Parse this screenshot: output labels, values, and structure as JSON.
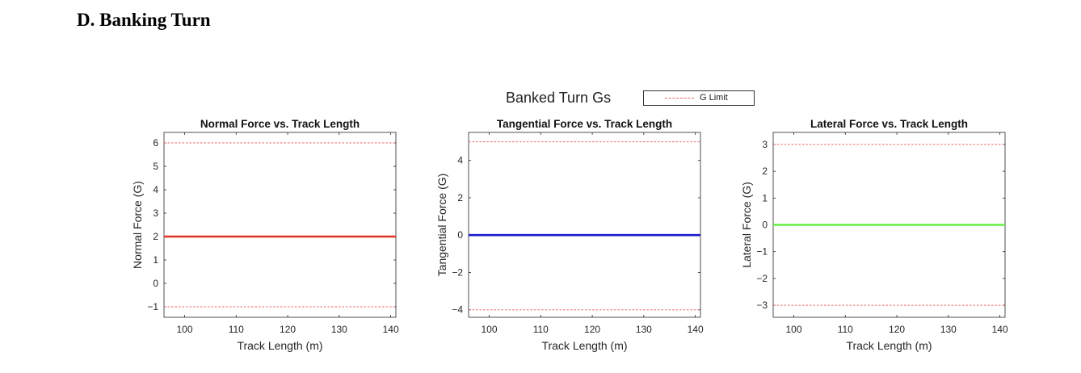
{
  "heading": "D.  Banking Turn",
  "figure_title": "Banked Turn Gs",
  "legend": {
    "label": "G Limit",
    "color": "#ee6666"
  },
  "chart_data": [
    {
      "type": "line",
      "title": "Normal Force vs. Track Length",
      "xlabel": "Track Length (m)",
      "ylabel": "Normal Force (G)",
      "xlim": [
        96,
        141
      ],
      "ylim": [
        -1.45,
        6.45
      ],
      "xticks": [
        100,
        110,
        120,
        130,
        140
      ],
      "yticks": [
        -1,
        0,
        1,
        2,
        3,
        4,
        5,
        6
      ],
      "series": [
        {
          "x": [
            96,
            141
          ],
          "y": [
            2,
            2
          ],
          "color": "#dd3322"
        }
      ],
      "limits": [
        6,
        -1
      ],
      "grid": false
    },
    {
      "type": "line",
      "title": "Tangential Force vs. Track Length",
      "xlabel": "Track Length (m)",
      "ylabel": "Tangential Force (G)",
      "xlim": [
        96,
        141
      ],
      "ylim": [
        -4.4,
        5.5
      ],
      "xticks": [
        100,
        110,
        120,
        130,
        140
      ],
      "yticks": [
        -4,
        -2,
        0,
        2,
        4
      ],
      "series": [
        {
          "x": [
            96,
            141
          ],
          "y": [
            0,
            0
          ],
          "color": "#1a1acc"
        }
      ],
      "limits": [
        5,
        -4
      ],
      "grid": false
    },
    {
      "type": "line",
      "title": "Lateral Force vs. Track Length",
      "xlabel": "Track Length (m)",
      "ylabel": "Lateral Force (G)",
      "xlim": [
        96,
        141
      ],
      "ylim": [
        -3.45,
        3.45
      ],
      "xticks": [
        100,
        110,
        120,
        130,
        140
      ],
      "yticks": [
        -3,
        -2,
        -1,
        0,
        1,
        2,
        3
      ],
      "series": [
        {
          "x": [
            96,
            141
          ],
          "y": [
            0,
            0
          ],
          "color": "#66ee44"
        }
      ],
      "limits": [
        3,
        -3
      ],
      "grid": false
    }
  ]
}
